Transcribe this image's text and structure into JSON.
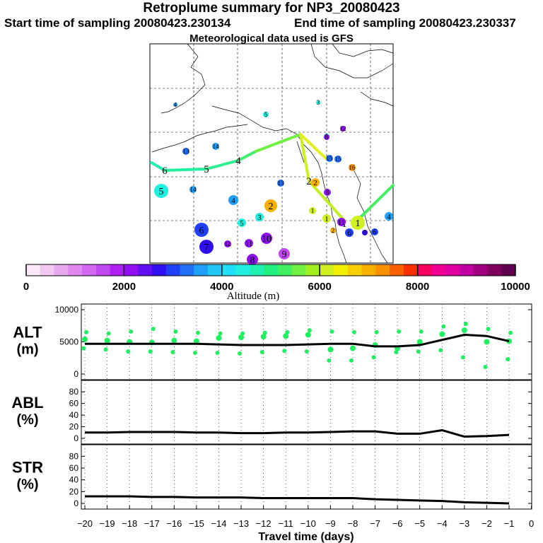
{
  "header": {
    "title": "Retroplume summary for NP3_20080423",
    "start_label": "Start time of sampling 20080423.230134",
    "end_label": "End time of sampling 20080423.230337",
    "met_label": "Meteorological data used is GFS"
  },
  "colorbar": {
    "title": "Altitude (m)",
    "ticks": [
      "0",
      "2000",
      "4000",
      "6000",
      "8000",
      "10000"
    ],
    "colors": [
      "#f8e8f8",
      "#f0c8f0",
      "#e8a8f0",
      "#e088f0",
      "#d068f0",
      "#c048f0",
      "#b020f0",
      "#9010f0",
      "#6010f0",
      "#3010f0",
      "#2040f8",
      "#2070f8",
      "#20a0f8",
      "#20c8f8",
      "#20e0f8",
      "#20f0e0",
      "#20f0b0",
      "#20f080",
      "#40f060",
      "#70f040",
      "#a0f020",
      "#d0f020",
      "#f0f000",
      "#f8d000",
      "#f8b000",
      "#f89000",
      "#f86000",
      "#f83000",
      "#f80060",
      "#f00090",
      "#e000a0",
      "#c000a0",
      "#a00080",
      "#800060",
      "#600050"
    ]
  },
  "chart_data": [
    {
      "type": "map",
      "title": "Retroplume summary map",
      "plume_path_labels": [
        "1",
        "2",
        "3",
        "4",
        "5",
        "6"
      ],
      "cluster_labels": [
        "1",
        "2",
        "3",
        "4",
        "5",
        "6",
        "7",
        "8",
        "9",
        "10",
        "11",
        "12",
        "13",
        "14",
        "15",
        "16"
      ],
      "map_points": [
        {
          "label": "1",
          "alt": 6000
        },
        {
          "label": "2",
          "alt": 7000
        },
        {
          "label": "3",
          "alt": 4300
        },
        {
          "label": "4",
          "alt": 3700
        },
        {
          "label": "5",
          "alt": 4300
        },
        {
          "label": "6",
          "alt": 3000
        },
        {
          "label": "7",
          "alt": 2800
        },
        {
          "label": "8",
          "alt": 2000
        },
        {
          "label": "9",
          "alt": 1500
        },
        {
          "label": "10",
          "alt": 2200
        },
        {
          "label": "11",
          "alt": 2000
        },
        {
          "label": "12",
          "alt": 2200
        },
        {
          "label": "13",
          "alt": 3300
        },
        {
          "label": "14",
          "alt": 3700
        },
        {
          "label": "15",
          "alt": 3400
        },
        {
          "label": "16",
          "alt": 7200
        }
      ]
    },
    {
      "type": "line",
      "panel": "ALT",
      "ylabel": "ALT (m)",
      "ylabel_top": "ALT",
      "ylabel_bottom": "(m)",
      "ylim": [
        0,
        10000
      ],
      "yticks": [
        "0",
        "5000",
        "10000"
      ],
      "x": [
        -20,
        -19,
        -18,
        -17,
        -16,
        -15,
        -14,
        -13,
        -12,
        -11,
        -10,
        -9,
        -8,
        -7,
        -6,
        -5,
        -4,
        -3,
        -2,
        -1
      ],
      "series": [
        {
          "name": "median altitude",
          "values": [
            4700,
            4700,
            4700,
            4700,
            4700,
            4700,
            4600,
            4500,
            4500,
            4500,
            4600,
            4700,
            4700,
            4300,
            4300,
            4500,
            5300,
            6100,
            5900,
            5100
          ]
        }
      ],
      "scatter_values": [
        [
          4000,
          5400,
          6500
        ],
        [
          3800,
          5200,
          6300
        ],
        [
          3500,
          5000,
          6600
        ],
        [
          3500,
          4900,
          7000
        ],
        [
          3400,
          5200,
          6600
        ],
        [
          3300,
          5100,
          6400
        ],
        [
          3300,
          5600,
          6300
        ],
        [
          3200,
          5700,
          6300
        ],
        [
          3400,
          5800,
          6400
        ],
        [
          3600,
          5900,
          6500
        ],
        [
          3500,
          6100,
          6800
        ],
        [
          2100,
          3800,
          6600
        ],
        [
          2100,
          4000,
          6500
        ],
        [
          2600,
          4500,
          6500
        ],
        [
          3400,
          4000,
          6600
        ],
        [
          3500,
          5000,
          6600
        ],
        [
          3700,
          6200,
          7400
        ],
        [
          2600,
          6800,
          7800
        ],
        [
          1100,
          5000,
          7000
        ],
        [
          2300,
          5100,
          6400
        ]
      ]
    },
    {
      "type": "line",
      "panel": "ABL",
      "ylabel": "ABL (%)",
      "ylabel_top": "ABL",
      "ylabel_bottom": "(%)",
      "ylim": [
        0,
        90
      ],
      "yticks": [
        "0",
        "20",
        "40",
        "60",
        "80"
      ],
      "x": [
        -20,
        -19,
        -18,
        -17,
        -16,
        -15,
        -14,
        -13,
        -12,
        -11,
        -10,
        -9,
        -8,
        -7,
        -6,
        -5,
        -4,
        -3,
        -2,
        -1
      ],
      "series": [
        {
          "name": "ABL fraction",
          "values": [
            10,
            10,
            11,
            11,
            11,
            10,
            10,
            9,
            9,
            10,
            10,
            11,
            12,
            12,
            8,
            8,
            14,
            3,
            4,
            6
          ]
        }
      ]
    },
    {
      "type": "line",
      "panel": "STR",
      "ylabel": "STR (%)",
      "ylabel_top": "STR",
      "ylabel_bottom": "(%)",
      "ylim": [
        0,
        90
      ],
      "yticks": [
        "0",
        "20",
        "40",
        "60",
        "80"
      ],
      "x": [
        -20,
        -19,
        -18,
        -17,
        -16,
        -15,
        -14,
        -13,
        -12,
        -11,
        -10,
        -9,
        -8,
        -7,
        -6,
        -5,
        -4,
        -3,
        -2,
        -1
      ],
      "series": [
        {
          "name": "stratospheric fraction",
          "values": [
            12,
            12,
            12,
            11,
            11,
            10,
            10,
            10,
            9,
            9,
            9,
            9,
            9,
            7,
            6,
            5,
            4,
            2,
            1,
            0
          ]
        }
      ]
    },
    {
      "type": "axis",
      "xlabel": "Travel time (days)",
      "xticks": [
        "-20",
        "-19",
        "-18",
        "-17",
        "-16",
        "-15",
        "-14",
        "-13",
        "-12",
        "-11",
        "-10",
        "-9",
        "-8",
        "-7",
        "-6",
        "-5",
        "-4",
        "-3",
        "-2",
        "-1",
        "0"
      ]
    }
  ]
}
